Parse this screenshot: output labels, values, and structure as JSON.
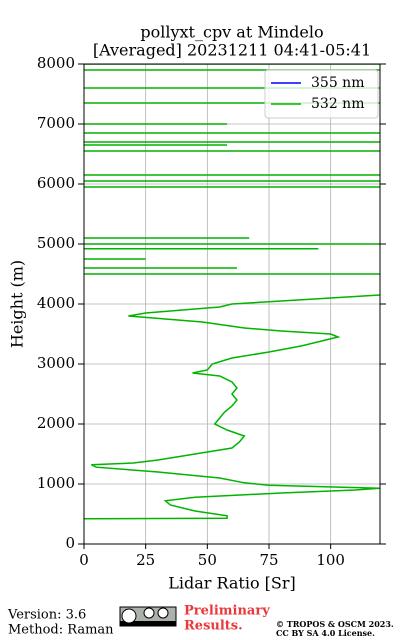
{
  "chart_data": {
    "type": "line",
    "title": "pollyxt_cpv at Mindelo",
    "subtitle": "[Averaged] 20231211 04:41-05:41",
    "xlabel": "Lidar Ratio [Sr]",
    "ylabel": "Height (m)",
    "xlim": [
      0,
      120
    ],
    "ylim": [
      0,
      8000
    ],
    "xticks": [
      0,
      25,
      50,
      75,
      100
    ],
    "yticks": [
      0,
      1000,
      2000,
      3000,
      4000,
      5000,
      6000,
      7000,
      8000
    ],
    "grid": true,
    "legend": "upper right",
    "y": [
      420,
      430,
      470,
      550,
      650,
      720,
      780,
      850,
      900,
      930,
      980,
      1020,
      1100,
      1200,
      1280,
      1320,
      1350,
      1400,
      1500,
      1600,
      1700,
      1800,
      1900,
      2000,
      2100,
      2200,
      2300,
      2400,
      2500,
      2600,
      2700,
      2800,
      2850,
      2900,
      3000,
      3100,
      3200,
      3300,
      3400,
      3450,
      3500,
      3550,
      3600,
      3700,
      3800,
      3850,
      3900,
      3950,
      4000,
      4050,
      4100,
      4150,
      null,
      4500,
      4500,
      null,
      4600,
      4600,
      null,
      4750,
      4750,
      null,
      4920,
      4920,
      null,
      5000,
      5000,
      null,
      5100,
      5100,
      null,
      5950,
      5950,
      null,
      6050,
      6050,
      null,
      6150,
      6150,
      null,
      6550,
      6550,
      null,
      6650,
      6650,
      null,
      6700,
      6700,
      null,
      6850,
      6850,
      null,
      7000,
      7000,
      null,
      7350,
      7350,
      null,
      7600,
      7600,
      null,
      7900,
      7900,
      null,
      8000,
      8000
    ],
    "series": [
      {
        "name": "355 nm",
        "color": "#0000ff",
        "values": [
          null,
          null,
          null,
          null,
          null,
          null,
          null,
          null,
          null,
          null,
          null,
          null,
          null,
          null,
          null,
          null,
          null,
          null,
          null,
          null,
          null,
          null,
          null,
          null,
          null,
          null,
          null,
          null,
          null,
          null,
          null,
          null,
          null,
          null,
          null,
          null,
          null,
          null,
          null,
          null,
          null,
          null,
          null,
          null,
          null,
          null,
          null,
          null,
          null,
          null,
          null,
          null,
          null,
          null,
          null,
          null,
          null,
          null,
          null,
          null,
          null,
          null,
          null,
          null,
          null,
          null,
          null,
          null,
          null,
          null,
          null,
          null,
          null,
          null,
          null,
          null,
          null,
          null,
          null,
          null,
          null,
          null,
          null,
          null,
          null,
          null,
          null,
          null,
          null,
          null,
          null,
          null,
          null,
          null,
          null,
          null,
          null,
          null,
          null,
          null,
          null,
          null,
          null,
          null,
          null,
          null
        ]
      },
      {
        "name": "532 nm",
        "color": "#00b400",
        "values": [
          0,
          58,
          58,
          45,
          35,
          33,
          45,
          80,
          110,
          120,
          75,
          65,
          55,
          30,
          5,
          3,
          20,
          30,
          45,
          60,
          63,
          65,
          58,
          53,
          55,
          57,
          60,
          62,
          60,
          62,
          60,
          55,
          44,
          50,
          52,
          60,
          75,
          88,
          98,
          103,
          100,
          80,
          65,
          48,
          18,
          25,
          40,
          55,
          60,
          80,
          100,
          120,
          null,
          0,
          120,
          null,
          0,
          62,
          null,
          0,
          25,
          null,
          0,
          95,
          null,
          0,
          120,
          null,
          0,
          67,
          null,
          0,
          120,
          null,
          0,
          120,
          null,
          0,
          120,
          null,
          0,
          120,
          null,
          0,
          58,
          null,
          0,
          120,
          null,
          0,
          120,
          null,
          0,
          58,
          null,
          0,
          120,
          null,
          0,
          120,
          null,
          0,
          120,
          null,
          0,
          120
        ]
      }
    ]
  },
  "footer": {
    "version": "Version: 3.6",
    "method": "Method: Raman",
    "status_line1": "Preliminary",
    "status_line2": "Results.",
    "copyright": "© TROPOS & OSCM 2023.",
    "license": "CC BY SA 4.0 License."
  }
}
